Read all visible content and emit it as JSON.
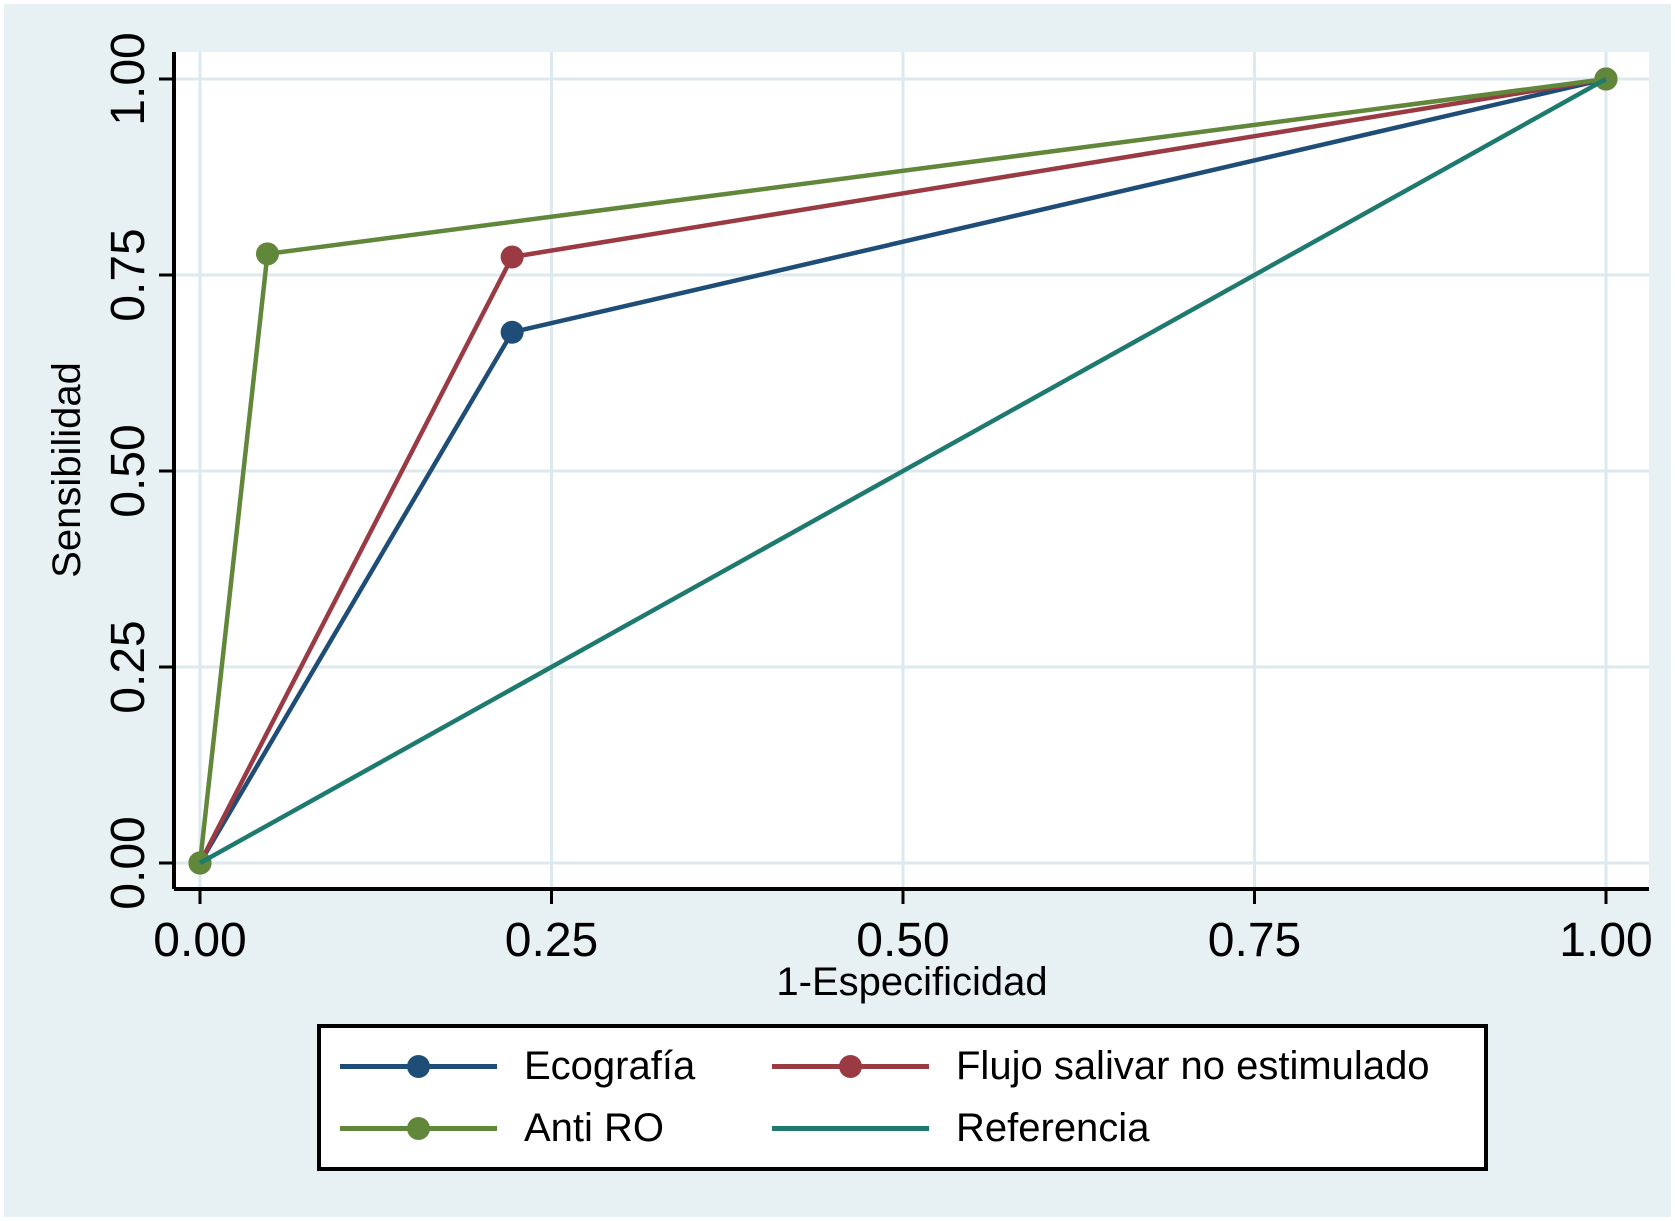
{
  "chart_data": {
    "type": "line",
    "title": "",
    "xlabel": "1-Especificidad",
    "ylabel": "Sensibilidad",
    "xlim": [
      0,
      1
    ],
    "ylim": [
      0,
      1
    ],
    "grid": true,
    "legend_position": "bottom",
    "x_ticks": [
      0,
      0.25,
      0.5,
      0.75,
      1
    ],
    "y_ticks": [
      0,
      0.25,
      0.5,
      0.75,
      1
    ],
    "x_tick_labels": [
      "0.00",
      "0.25",
      "0.50",
      "0.75",
      "1.00"
    ],
    "y_tick_labels": [
      "0.00",
      "0.25",
      "0.50",
      "0.75",
      "1.00"
    ],
    "series": [
      {
        "name": "Ecografía",
        "color": "#1E4D78",
        "marker": true,
        "points": [
          [
            0,
            0
          ],
          [
            0.222,
            0.677
          ],
          [
            1,
            1
          ]
        ]
      },
      {
        "name": "Flujo salivar no estimulado",
        "color": "#9A3B44",
        "marker": true,
        "points": [
          [
            0,
            0
          ],
          [
            0.222,
            0.773
          ],
          [
            1,
            1
          ]
        ]
      },
      {
        "name": "Anti RO",
        "color": "#61873A",
        "marker": true,
        "points": [
          [
            0,
            0
          ],
          [
            0.048,
            0.777
          ],
          [
            1,
            1
          ]
        ]
      },
      {
        "name": "Referencia",
        "color": "#1E7A6F",
        "marker": false,
        "points": [
          [
            0,
            0
          ],
          [
            1,
            1
          ]
        ]
      }
    ]
  },
  "colors": {
    "background": "#E7F0F2",
    "plot_background": "#FFFFFF",
    "gridline": "#DCE9EE",
    "axis": "#000000",
    "legend_border": "#000000"
  }
}
